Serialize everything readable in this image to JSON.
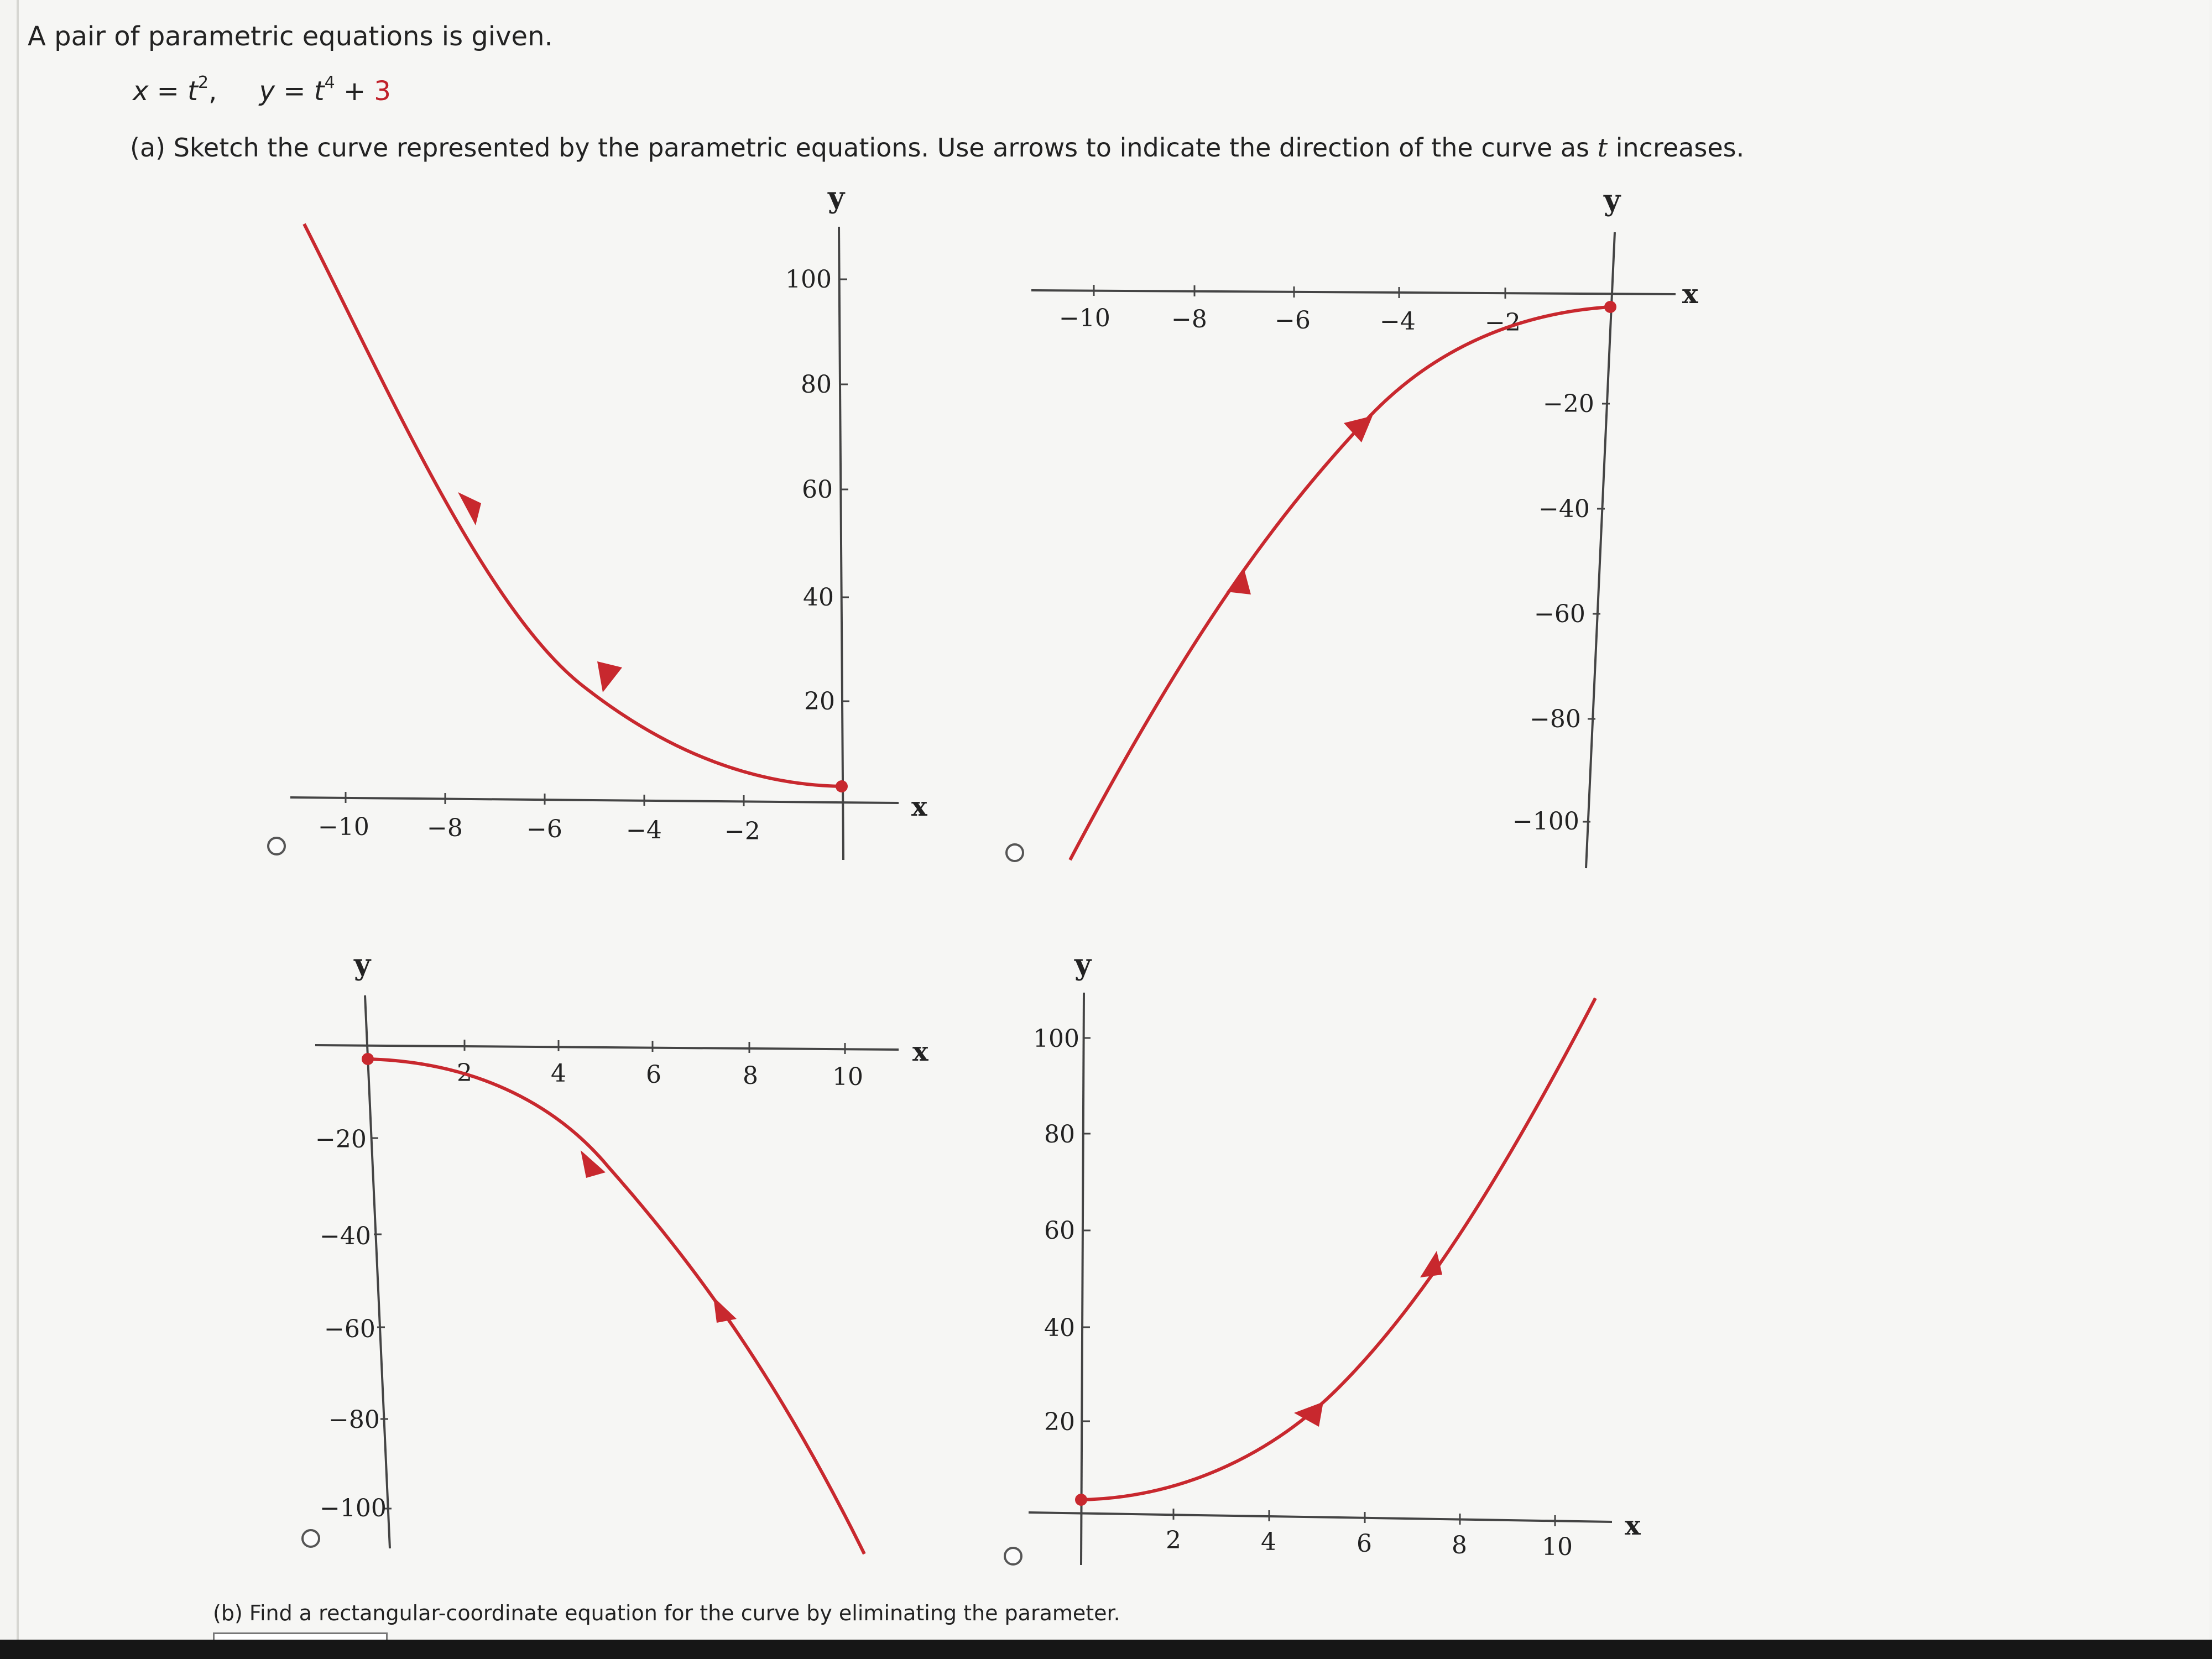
{
  "question": {
    "intro": "A pair of parametric equations is given.",
    "equation_x_lhs": "x = t",
    "equation_x_exp": "2",
    "equation_sep": ",",
    "equation_y_lhs": "y = t",
    "equation_y_exp": "4",
    "equation_y_plus": " + ",
    "equation_y_const": "3",
    "part_a_pre": "(a) Sketch the curve represented by the parametric equations. Use arrows to indicate the direction of the curve as ",
    "part_a_var": "t",
    "part_a_post": " increases.",
    "part_b": "(b) Find a rectangular-coordinate equation for the curve by eliminating the parameter."
  },
  "colors": {
    "curve": "#c8282e",
    "axis": "#444444"
  },
  "options": [
    {
      "id": "A",
      "x_axis_label": "x",
      "y_axis_label": "y",
      "x_ticks": [
        "−10",
        "−8",
        "−6",
        "−4",
        "−2"
      ],
      "y_ticks": [
        "100",
        "80",
        "60",
        "40",
        "20"
      ],
      "description_direction": "curve starts at (0,3), arrows point toward decreasing x"
    },
    {
      "id": "B",
      "x_axis_label": "x",
      "y_axis_label": "y",
      "x_ticks": [
        "−10",
        "−8",
        "−6",
        "−4",
        "−2"
      ],
      "y_ticks": [
        "−20",
        "−40",
        "−60",
        "−80",
        "−100"
      ]
    },
    {
      "id": "C",
      "x_axis_label": "x",
      "y_axis_label": "y",
      "x_ticks": [
        "2",
        "4",
        "6",
        "8",
        "10"
      ],
      "y_ticks": [
        "−20",
        "−40",
        "−60",
        "−80",
        "−100"
      ]
    },
    {
      "id": "D",
      "x_axis_label": "x",
      "y_axis_label": "y",
      "x_ticks": [
        "2",
        "4",
        "6",
        "8",
        "10"
      ],
      "y_ticks": [
        "100",
        "80",
        "60",
        "40",
        "20"
      ]
    }
  ]
}
